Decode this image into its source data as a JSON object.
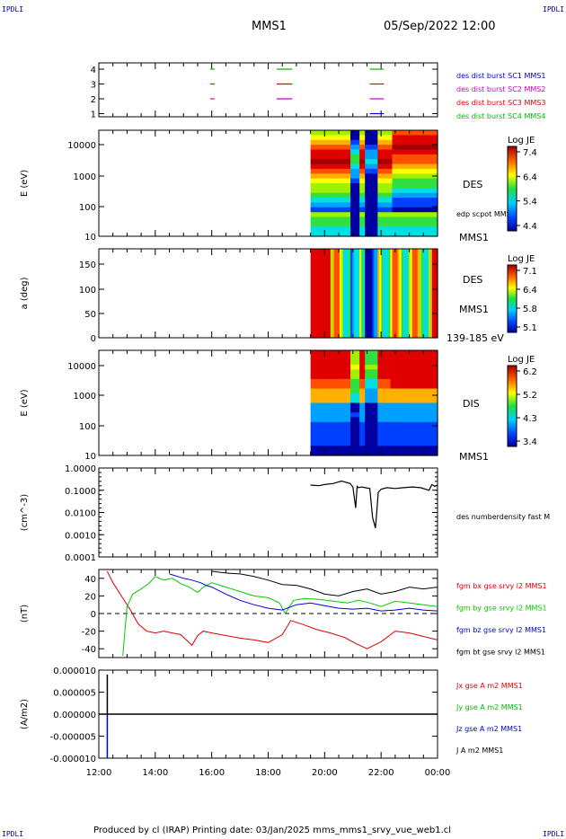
{
  "corner_label": "IPDLI",
  "header": {
    "spacecraft": "MMS1",
    "datetime": "05/Sep/2022 12:00"
  },
  "footer": {
    "text": "Produced by cl (IRAP)   Printing date: 03/Jan/2025   mms_mms1_srvy_vue_web1.cl"
  },
  "chart_data": [
    {
      "type": "line",
      "panel": "burst-availability",
      "yticks": [
        "4",
        "3",
        "2",
        "1"
      ],
      "legend": [
        {
          "label": "des dist burst SC1 MMS1",
          "color": "#0000cc"
        },
        {
          "label": "des dist burst SC2 MMS2",
          "color": "#cc00cc"
        },
        {
          "label": "des dist burst SC3 MMS3",
          "color": "#dd0000"
        },
        {
          "label": "des dist burst SC4 MMS4",
          "color": "#00bb00"
        }
      ],
      "segments": [
        {
          "sc": 4,
          "start": 15.95,
          "end": 16.1
        },
        {
          "sc": 3,
          "start": 15.95,
          "end": 16.1
        },
        {
          "sc": 2,
          "start": 15.95,
          "end": 16.1
        },
        {
          "sc": 4,
          "start": 18.3,
          "end": 18.85
        },
        {
          "sc": 3,
          "start": 18.3,
          "end": 18.85
        },
        {
          "sc": 2,
          "start": 18.3,
          "end": 18.85
        },
        {
          "sc": 4,
          "start": 21.6,
          "end": 22.1
        },
        {
          "sc": 3,
          "start": 21.6,
          "end": 22.1
        },
        {
          "sc": 2,
          "start": 21.6,
          "end": 22.1
        },
        {
          "sc": 1,
          "start": 21.6,
          "end": 22.1
        }
      ]
    },
    {
      "type": "heatmap",
      "panel": "des-energy",
      "ylabel": "E (eV)",
      "yticks": [
        "10000",
        "1000",
        "100",
        "10"
      ],
      "right_labels": [
        "DES",
        "edp scpot MMS1",
        "MMS1"
      ],
      "colorbar": {
        "title": "Log JE",
        "ticks": [
          "7.4",
          "6.4",
          "5.4",
          "4.4"
        ]
      },
      "data_start_hour": 19.5
    },
    {
      "type": "heatmap",
      "panel": "des-pitch-angle",
      "ylabel": "a (deg)",
      "yticks": [
        "150",
        "100",
        "50",
        "0"
      ],
      "right_labels": [
        "DES",
        "MMS1",
        "139-185 eV"
      ],
      "colorbar": {
        "title": "Log JE",
        "ticks": [
          "7.1",
          "6.4",
          "5.8",
          "5.1"
        ]
      },
      "data_start_hour": 19.5
    },
    {
      "type": "heatmap",
      "panel": "dis-energy",
      "ylabel": "E (eV)",
      "yticks": [
        "10000",
        "1000",
        "100",
        "10"
      ],
      "right_labels": [
        "DIS",
        "MMS1"
      ],
      "colorbar": {
        "title": "Log JE",
        "ticks": [
          "6.2",
          "5.2",
          "4.3",
          "3.4"
        ]
      },
      "data_start_hour": 19.5
    },
    {
      "type": "line",
      "panel": "number-density",
      "ylabel": "(cm^-3)",
      "yticks": [
        "1.0000",
        "0.1000",
        "0.0100",
        "0.0010",
        "0.0001"
      ],
      "legend": [
        {
          "label": "des numberdensity fast M",
          "color": "#000000"
        }
      ],
      "series": [
        {
          "x": [
            19.5,
            19.8,
            20.0,
            20.3,
            20.6,
            20.9,
            21.0,
            21.1,
            21.15,
            21.2,
            21.3,
            21.6,
            21.7,
            21.8,
            21.85,
            21.9,
            22.0,
            22.2,
            22.5,
            22.8,
            23.1,
            23.4,
            23.7,
            23.8,
            23.9,
            24.0
          ],
          "y": [
            0.17,
            0.16,
            0.18,
            0.2,
            0.26,
            0.2,
            0.14,
            0.016,
            0.15,
            0.13,
            0.14,
            0.12,
            0.006,
            0.002,
            0.012,
            0.08,
            0.11,
            0.13,
            0.12,
            0.13,
            0.14,
            0.13,
            0.1,
            0.18,
            0.15,
            0.17
          ]
        }
      ]
    },
    {
      "type": "line",
      "panel": "magnetic-field",
      "ylabel": "(nT)",
      "yticks": [
        "40",
        "20",
        "0",
        "-20",
        "-40"
      ],
      "ylim": [
        -50,
        50
      ],
      "legend": [
        {
          "label": "fgm bx gse srvy l2 MMS1",
          "color": "#dd0000"
        },
        {
          "label": "fgm by gse srvy l2 MMS1",
          "color": "#00cc00"
        },
        {
          "label": "fgm bz gse srvy l2 MMS1",
          "color": "#0000dd"
        },
        {
          "label": "fgm bt gse srvy l2 MMS1",
          "color": "#000000"
        }
      ],
      "series": [
        {
          "name": "fgm bx gse srvy l2 MMS1",
          "color": "#dd0000",
          "x": [
            12.3,
            12.5,
            12.8,
            13.1,
            13.4,
            13.7,
            14.0,
            14.3,
            14.6,
            14.9,
            15.1,
            15.3,
            15.5,
            15.7,
            16.0,
            16.5,
            17.0,
            17.5,
            18.0,
            18.5,
            18.8,
            19.2,
            19.7,
            20.2,
            20.7,
            21.1,
            21.5,
            22.0,
            22.5,
            23.0,
            23.5,
            24.0
          ],
          "y": [
            48,
            35,
            20,
            5,
            -12,
            -20,
            -22,
            -20,
            -22,
            -24,
            -30,
            -36,
            -25,
            -20,
            -22,
            -25,
            -28,
            -30,
            -33,
            -24,
            -8,
            -12,
            -18,
            -22,
            -27,
            -34,
            -40,
            -32,
            -20,
            -22,
            -26,
            -30
          ]
        },
        {
          "name": "fgm by gse srvy l2 MMS1",
          "color": "#00cc00",
          "x": [
            12.85,
            13.0,
            13.2,
            13.5,
            13.8,
            14.0,
            14.3,
            14.6,
            14.9,
            15.2,
            15.5,
            15.7,
            16.0,
            16.5,
            17.0,
            17.5,
            18.0,
            18.4,
            18.6,
            18.9,
            19.3,
            19.8,
            20.3,
            20.8,
            21.2,
            21.6,
            22.0,
            22.5,
            23.0,
            23.5,
            24.0
          ],
          "y": [
            -48,
            8,
            22,
            28,
            35,
            42,
            38,
            40,
            34,
            30,
            24,
            30,
            35,
            30,
            25,
            20,
            18,
            12,
            0,
            15,
            17,
            16,
            14,
            12,
            15,
            12,
            8,
            14,
            12,
            10,
            8
          ]
        },
        {
          "name": "fgm bz gse srvy l2 MMS1",
          "color": "#0000dd",
          "x": [
            14.5,
            15.0,
            15.3,
            15.6,
            15.8,
            16.0,
            16.5,
            17.0,
            17.5,
            18.0,
            18.5,
            19.0,
            19.5,
            20.0,
            20.5,
            21.0,
            21.5,
            22.0,
            22.5,
            23.0,
            23.5,
            24.0
          ],
          "y": [
            45,
            40,
            38,
            35,
            32,
            30,
            22,
            15,
            10,
            6,
            4,
            10,
            12,
            9,
            6,
            5,
            6,
            3,
            4,
            6,
            4,
            3
          ]
        },
        {
          "name": "fgm bt gse srvy l2 MMS1",
          "color": "#000000",
          "x": [
            16.0,
            16.5,
            17.0,
            17.5,
            18.0,
            18.5,
            19.0,
            19.5,
            20.0,
            20.5,
            21.0,
            21.5,
            22.0,
            22.5,
            23.0,
            23.5,
            24.0
          ],
          "y": [
            48,
            46,
            45,
            42,
            38,
            33,
            32,
            28,
            22,
            20,
            25,
            28,
            22,
            25,
            30,
            28,
            30
          ]
        }
      ],
      "reference_line": 0
    },
    {
      "type": "line",
      "panel": "current-density",
      "ylabel": "(A/m2)",
      "yticks": [
        "0.000010",
        "0.000005",
        "0.000000",
        "-0.000005",
        "-0.000010"
      ],
      "ylim": [
        -1e-05,
        1e-05
      ],
      "legend": [
        {
          "label": "Jx gse A m2 MMS1",
          "color": "#dd0000"
        },
        {
          "label": "Jy gse A m2 MMS1",
          "color": "#00bb00"
        },
        {
          "label": "Jz gse A m2 MMS1",
          "color": "#0000dd"
        },
        {
          "label": "J A m2 MMS1",
          "color": "#000000"
        }
      ],
      "spikes": [
        {
          "x": 12.3,
          "y": 9e-06,
          "color": "#000000"
        },
        {
          "x": 12.3,
          "y": -1e-05,
          "color": "#0000dd"
        }
      ]
    }
  ],
  "time_axis": {
    "ticks": [
      "12:00",
      "14:00",
      "16:00",
      "18:00",
      "20:00",
      "22:00",
      "00:00"
    ],
    "start_hour": 12,
    "end_hour": 24
  }
}
